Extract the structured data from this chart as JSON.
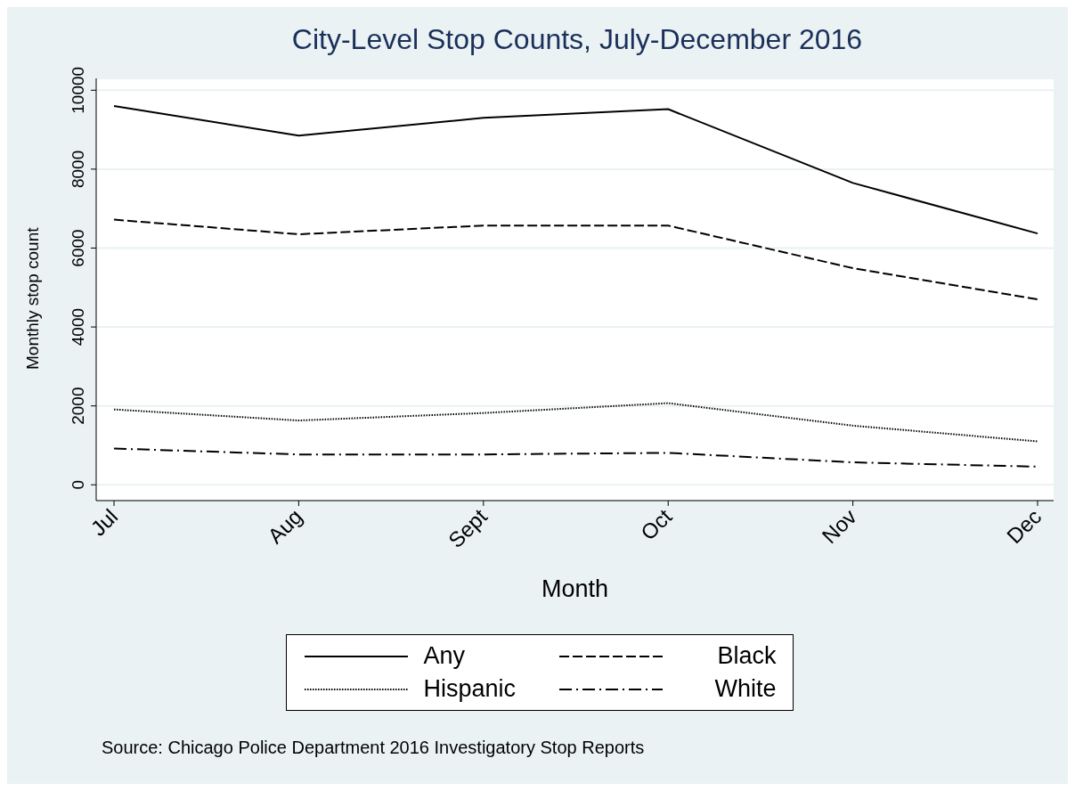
{
  "chart_data": {
    "type": "line",
    "title": "City-Level Stop Counts, July-December 2016",
    "xlabel": "Month",
    "ylabel": "Monthly stop count",
    "categories": [
      "Jul",
      "Aug",
      "Sept",
      "Oct",
      "Nov",
      "Dec"
    ],
    "series": [
      {
        "name": "Any",
        "color": "#000000",
        "line_style": "solid",
        "values": [
          9600,
          8850,
          9300,
          9520,
          7650,
          6370
        ]
      },
      {
        "name": "Black",
        "color": "#000000",
        "line_style": "dashed",
        "values": [
          6720,
          6350,
          6570,
          6570,
          5490,
          4700
        ]
      },
      {
        "name": "Hispanic",
        "color": "#000000",
        "line_style": "dotted",
        "values": [
          1910,
          1630,
          1820,
          2070,
          1500,
          1100
        ]
      },
      {
        "name": "White",
        "color": "#000000",
        "line_style": "dashdot",
        "values": [
          920,
          770,
          770,
          810,
          570,
          460
        ]
      }
    ],
    "ylim": [
      -400,
      10300
    ],
    "yticks": [
      0,
      2000,
      4000,
      6000,
      8000,
      10000
    ],
    "grid": "y",
    "legend": "bottom",
    "marker": "none",
    "annotations": [
      "Source: Chicago Police Department 2016 Investigatory Stop Reports"
    ]
  }
}
